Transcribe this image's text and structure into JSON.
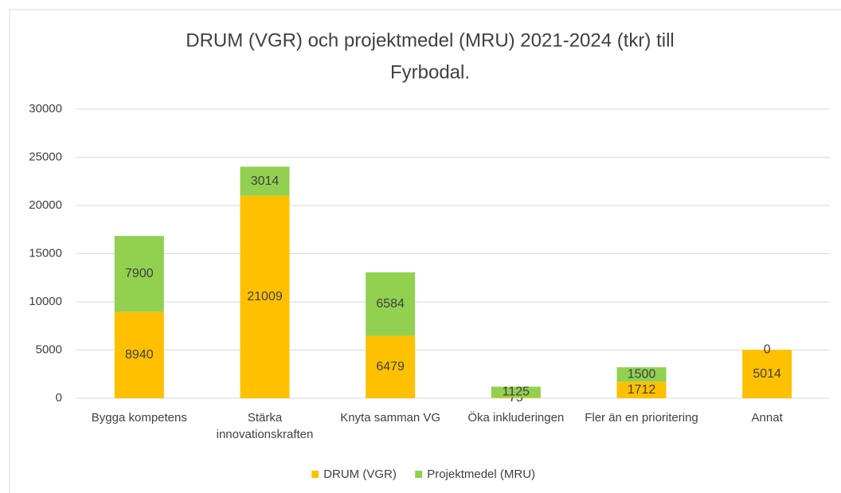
{
  "chart_data": {
    "type": "stacked_bar",
    "title": [
      "DRUM (VGR) och projektmedel (MRU) 2021-2024 (tkr) till",
      "Fyrbodal."
    ],
    "categories": [
      "Bygga kompetens",
      "Stärka innovationskraften",
      "Knyta samman VG",
      "Öka inkluderingen",
      "Fler än en prioritering",
      "Annat"
    ],
    "series": [
      {
        "name": "DRUM (VGR)",
        "color": "#ffc000",
        "values": [
          8940,
          21009,
          6479,
          75,
          1712,
          5014
        ]
      },
      {
        "name": "Projektmedel (MRU)",
        "color": "#92d050",
        "values": [
          7900,
          3014,
          6584,
          1125,
          1500,
          0
        ]
      }
    ],
    "ylim": [
      0,
      30000
    ],
    "yticks": [
      0,
      5000,
      10000,
      15000,
      20000,
      25000,
      30000
    ],
    "grid": true,
    "legend": "bottom"
  }
}
